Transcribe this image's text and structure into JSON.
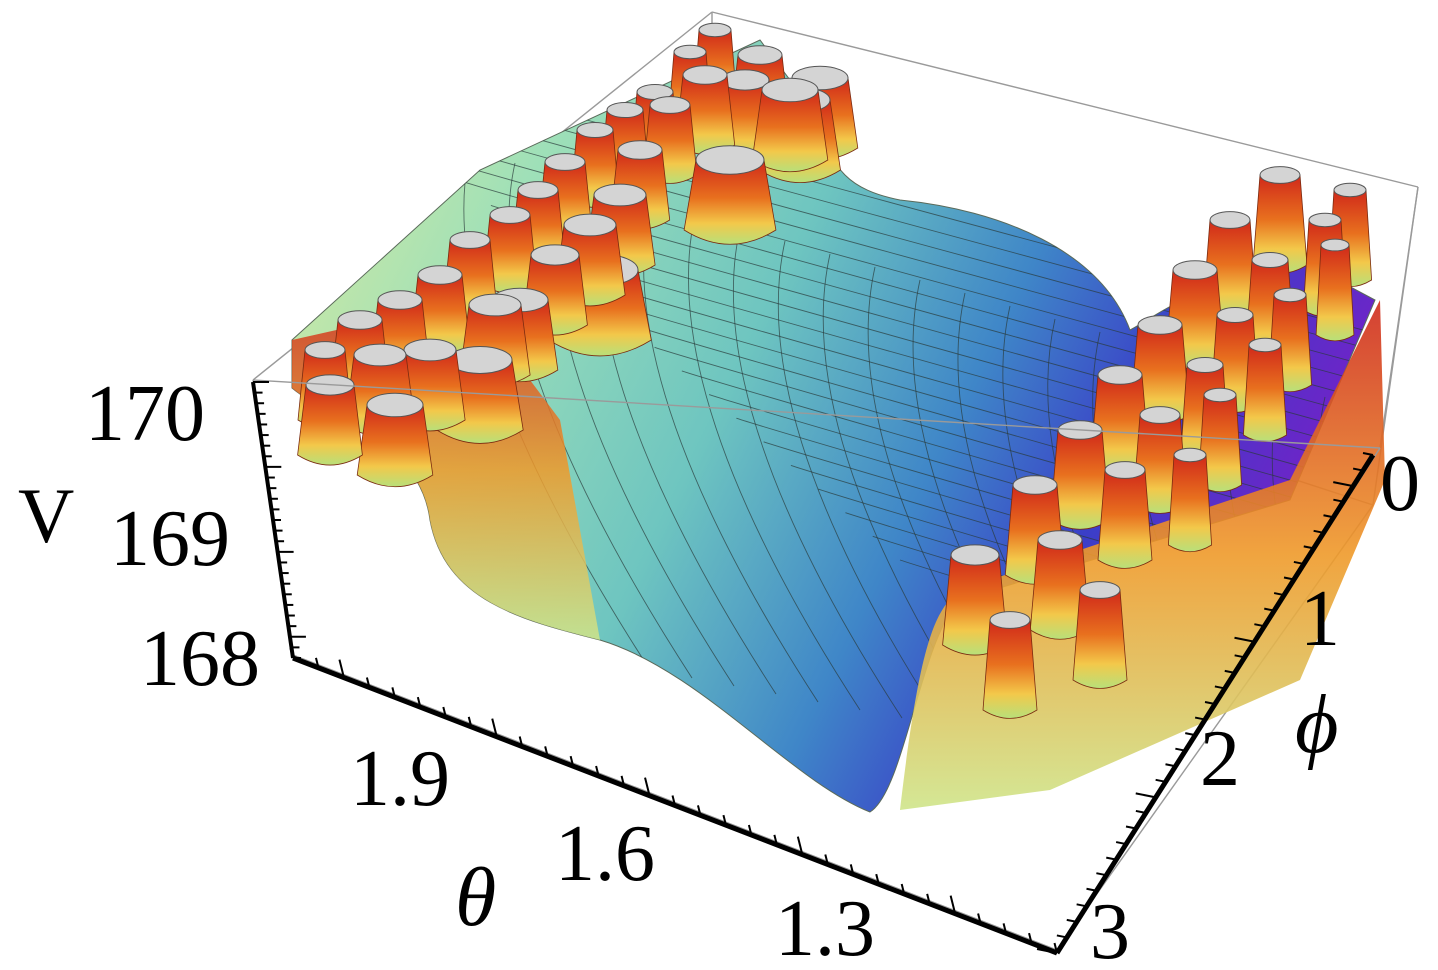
{
  "chart_data": {
    "type": "surface3d",
    "zlabel": "V",
    "xlabel": "θ",
    "ylabel": "ϕ",
    "x_ticks": [
      "1.9",
      "1.6",
      "1.3"
    ],
    "y_ticks": [
      "0",
      "1",
      "2",
      "3"
    ],
    "z_ticks": [
      "170",
      "169",
      "168"
    ],
    "xlim": [
      1.1,
      2.1
    ],
    "ylim": [
      0,
      3.14
    ],
    "zlim": [
      167.7,
      170.2
    ],
    "colormap": "rainbow",
    "box": true,
    "mesh": true,
    "clipped_peaks": true
  }
}
